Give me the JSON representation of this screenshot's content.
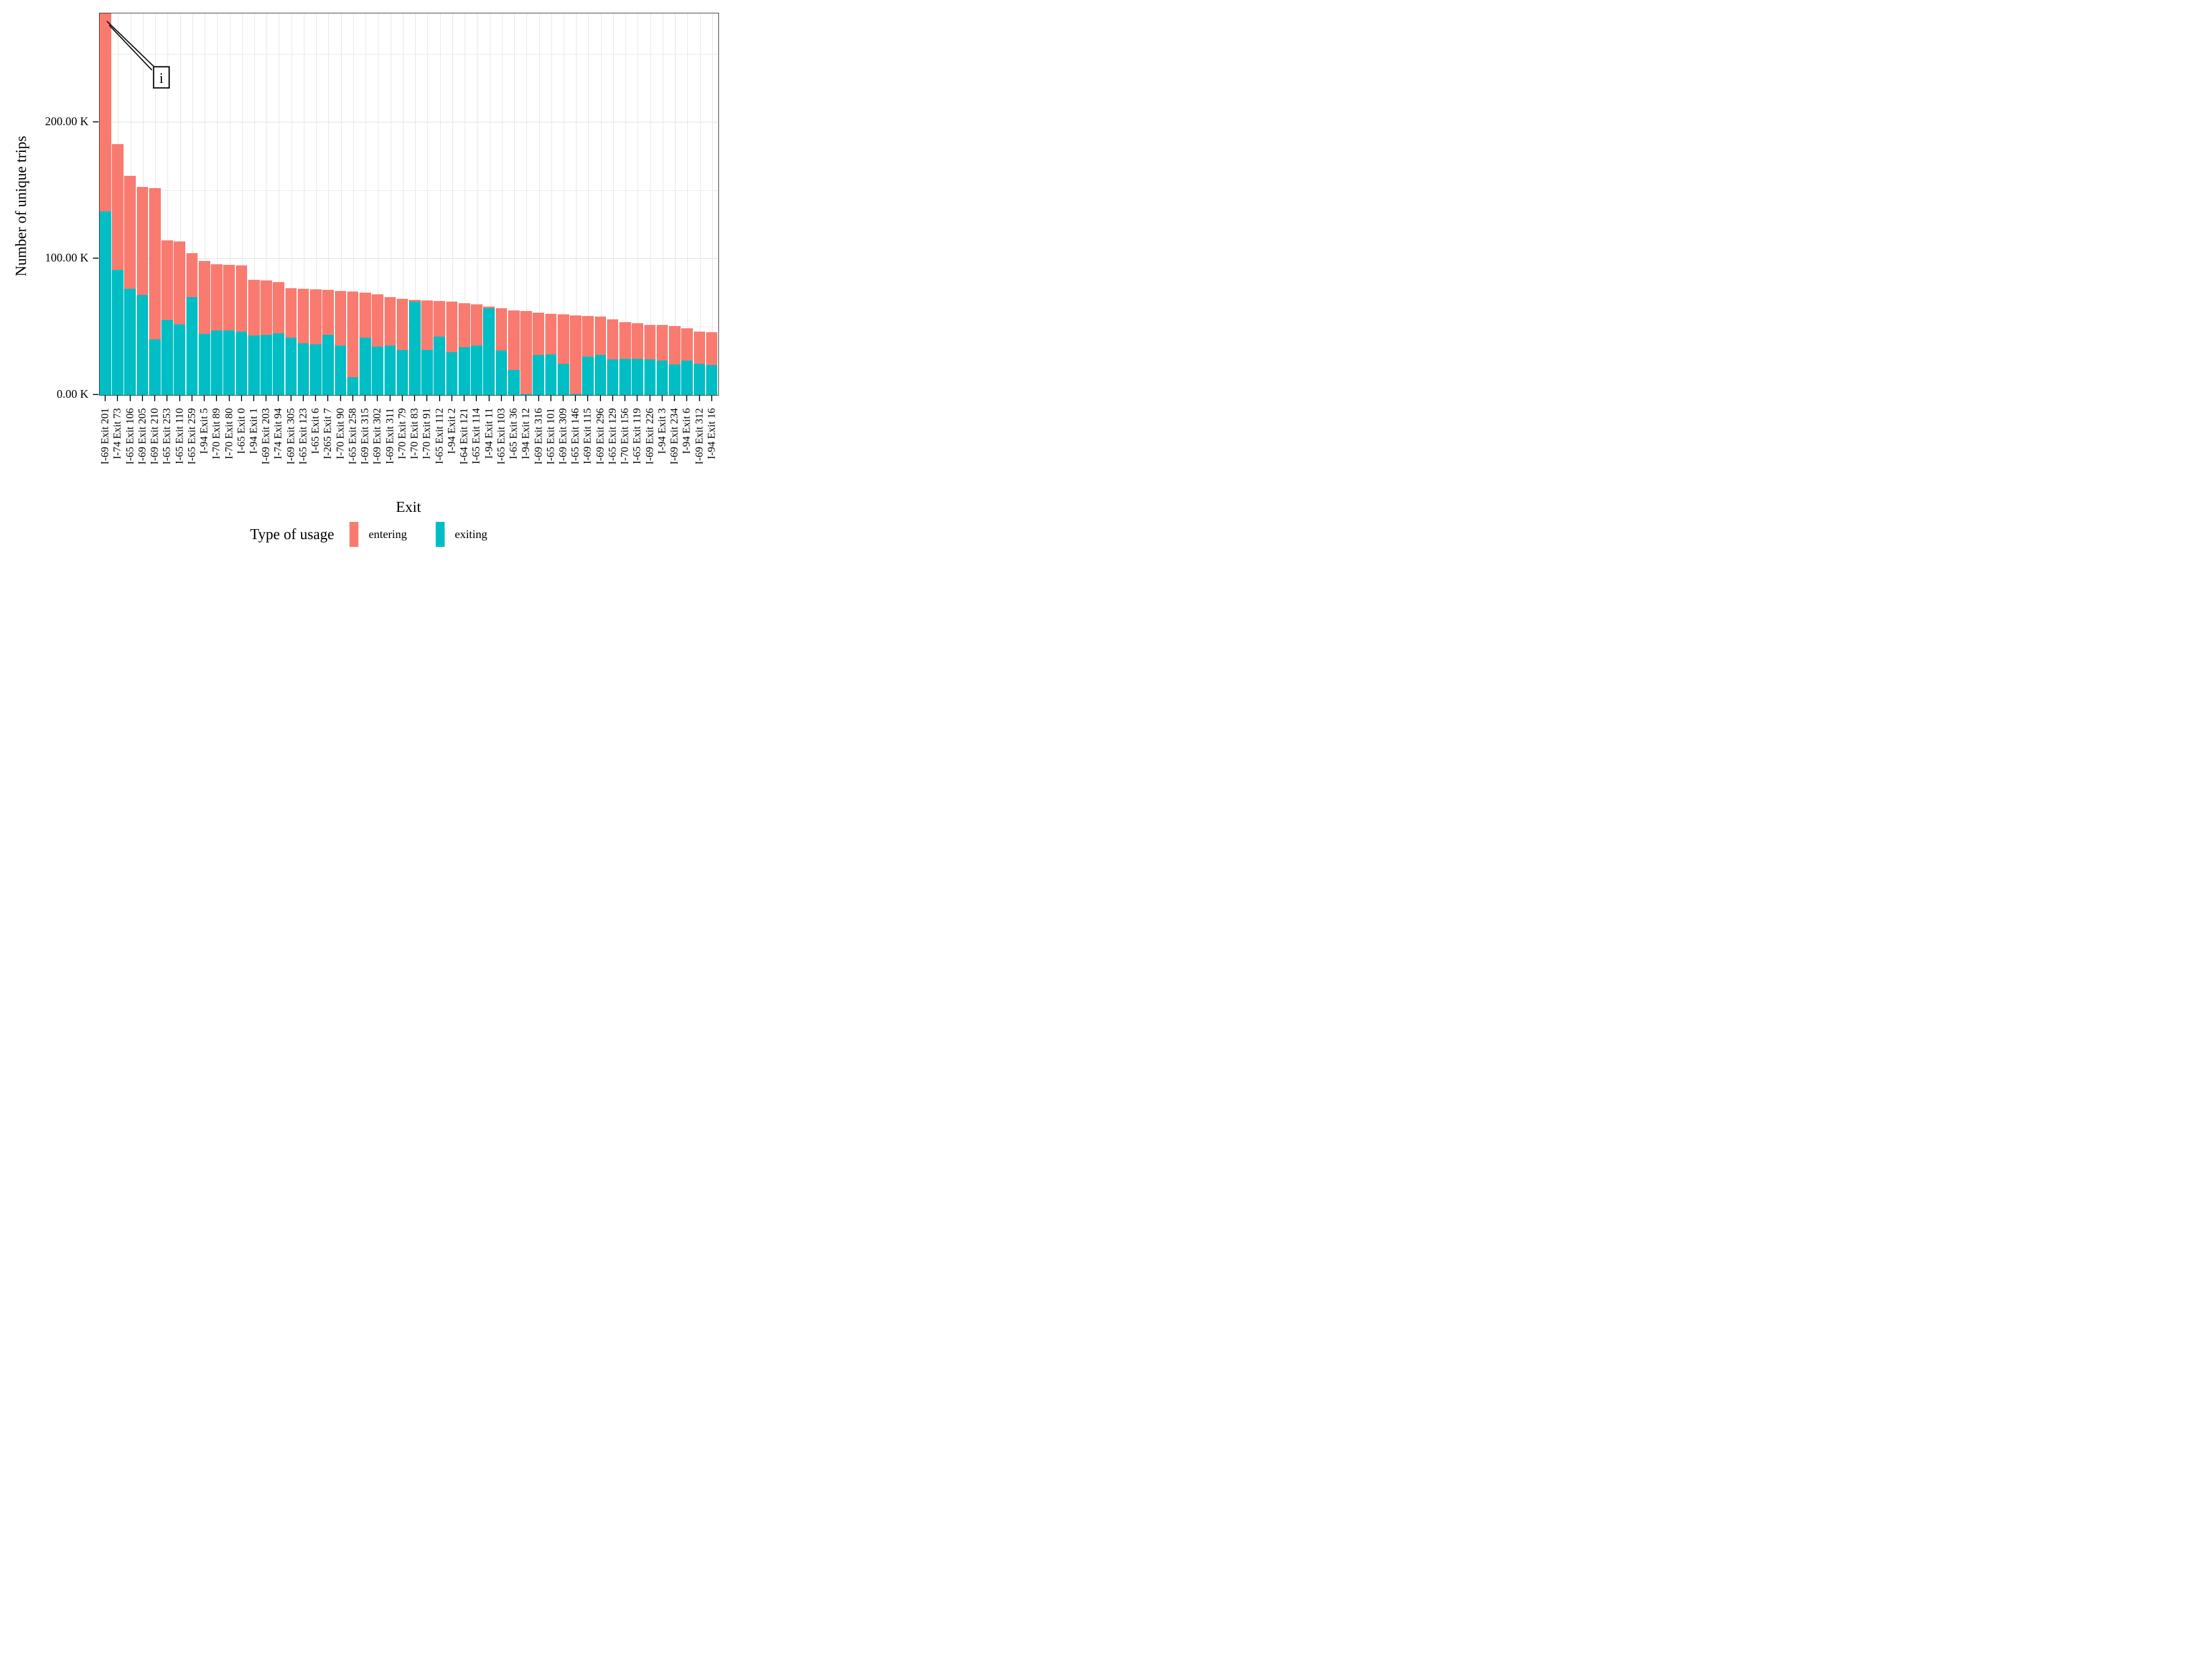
{
  "chart_data": {
    "type": "bar",
    "stacked": true,
    "orientation": "vertical",
    "xlabel": "Exit",
    "ylabel": "Number of unique trips",
    "ylim": [
      0,
      280
    ],
    "value_unit": "K",
    "grid": "major and minor horizontal gridlines every 50 K, vertical gridline at each bar",
    "y_ticks": [
      {
        "value": 0,
        "label": "0.00 K"
      },
      {
        "value": 100,
        "label": "100.00 K"
      },
      {
        "value": 200,
        "label": "200.00 K"
      }
    ],
    "legend": {
      "title": "Type of usage",
      "position": "bottom",
      "entries": [
        {
          "name": "entering",
          "color": "#F97B70"
        },
        {
          "name": "exiting",
          "color": "#00BEC4"
        }
      ]
    },
    "annotation": {
      "label": "i",
      "target": "I-69 Exit 201",
      "note": "callout box with two leader lines pointing to the clipped top of the first bar"
    },
    "clipped_bars": [
      "I-69 Exit 201"
    ],
    "categories": [
      "I-69 Exit 201",
      "I-74 Exit 73",
      "I-65 Exit 106",
      "I-69 Exit 205",
      "I-69 Exit 210",
      "I-65 Exit 253",
      "I-65 Exit 110",
      "I-65 Exit 259",
      "I-94 Exit 5",
      "I-70 Exit 89",
      "I-70 Exit 80",
      "I-65 Exit 0",
      "I-94 Exit 1",
      "I-69 Exit 203",
      "I-74 Exit 94",
      "I-69 Exit 305",
      "I-65 Exit 123",
      "I-65 Exit 6",
      "I-265 Exit 7",
      "I-70 Exit 90",
      "I-65 Exit 258",
      "I-69 Exit 315",
      "I-69 Exit 302",
      "I-69 Exit 311",
      "I-70 Exit 79",
      "I-70 Exit 83",
      "I-70 Exit 91",
      "I-65 Exit 112",
      "I-94 Exit 2",
      "I-64 Exit 121",
      "I-65 Exit 114",
      "I-94 Exit 11",
      "I-65 Exit 103",
      "I-65 Exit 36",
      "I-94 Exit 12",
      "I-69 Exit 316",
      "I-65 Exit 101",
      "I-69 Exit 309",
      "I-65 Exit 146",
      "I-69 Exit 115",
      "I-69 Exit 296",
      "I-65 Exit 129",
      "I-70 Exit 156",
      "I-65 Exit 119",
      "I-69 Exit 226",
      "I-94 Exit 3",
      "I-69 Exit 234",
      "I-94 Exit 6",
      "I-69 Exit 312",
      "I-94 Exit 16"
    ],
    "series": [
      {
        "name": "entering",
        "color": "#F97B70",
        "values": [
          149.5,
          92,
          83,
          79,
          111,
          58.5,
          60.5,
          32,
          53.5,
          48.5,
          48,
          48.5,
          41,
          40,
          37.5,
          36.5,
          40,
          40.5,
          33,
          40,
          63,
          33,
          38.5,
          35.5,
          37.5,
          1.5,
          36.5,
          26,
          37,
          32.5,
          30,
          1.5,
          31,
          43.5,
          60.5,
          31,
          29.5,
          36,
          57.5,
          30,
          28,
          29.5,
          27,
          26,
          25.5,
          26,
          28,
          23.5,
          23.5,
          24
        ]
      },
      {
        "name": "exiting",
        "color": "#00BEC4",
        "values": [
          138.5,
          92,
          78,
          73.5,
          41,
          55,
          52,
          72,
          45,
          47.5,
          47.5,
          46.5,
          43.5,
          44,
          45.5,
          42,
          38,
          37,
          44,
          36.5,
          13,
          42,
          35.5,
          36.5,
          33,
          68.5,
          33,
          43,
          31.5,
          35,
          36.5,
          63.5,
          32.5,
          18.5,
          1,
          29.5,
          30,
          23,
          1,
          28,
          29.5,
          26,
          26.5,
          26.5,
          26,
          25.5,
          22.5,
          25.5,
          23,
          22
        ]
      }
    ]
  }
}
